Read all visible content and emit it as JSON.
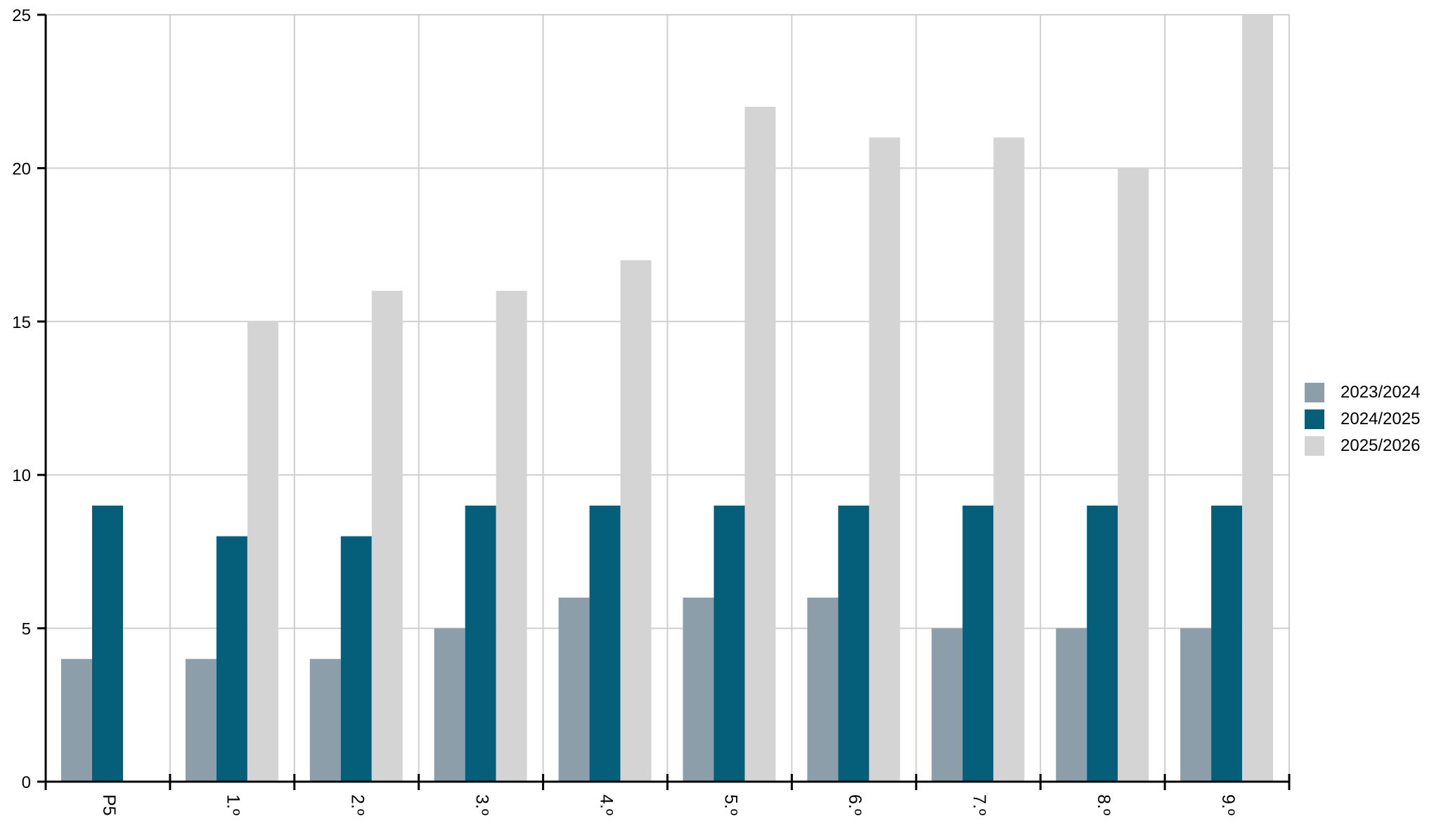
{
  "chart_data": {
    "type": "bar",
    "title": "",
    "xlabel": "",
    "ylabel": "",
    "categories": [
      "P5",
      "1.º",
      "2.º",
      "3.º",
      "4.º",
      "5.º",
      "6.º",
      "7.º",
      "8.º",
      "9.º"
    ],
    "series": [
      {
        "name": "2023/2024",
        "color": "#8b9ea9",
        "values": [
          4,
          4,
          4,
          5,
          6,
          6,
          6,
          5,
          5,
          5
        ]
      },
      {
        "name": "2024/2025",
        "color": "#055e7a",
        "values": [
          9,
          8,
          8,
          9,
          9,
          9,
          9,
          9,
          9,
          9
        ]
      },
      {
        "name": "2025/2026",
        "color": "#d4d4d4",
        "values": [
          0,
          15,
          16,
          16,
          17,
          22,
          21,
          21,
          20,
          25
        ]
      }
    ],
    "ylim": [
      0,
      25
    ],
    "yticks": [
      "0",
      "5",
      "10",
      "15",
      "20",
      "25"
    ],
    "grid": true,
    "legend_position": "right"
  }
}
